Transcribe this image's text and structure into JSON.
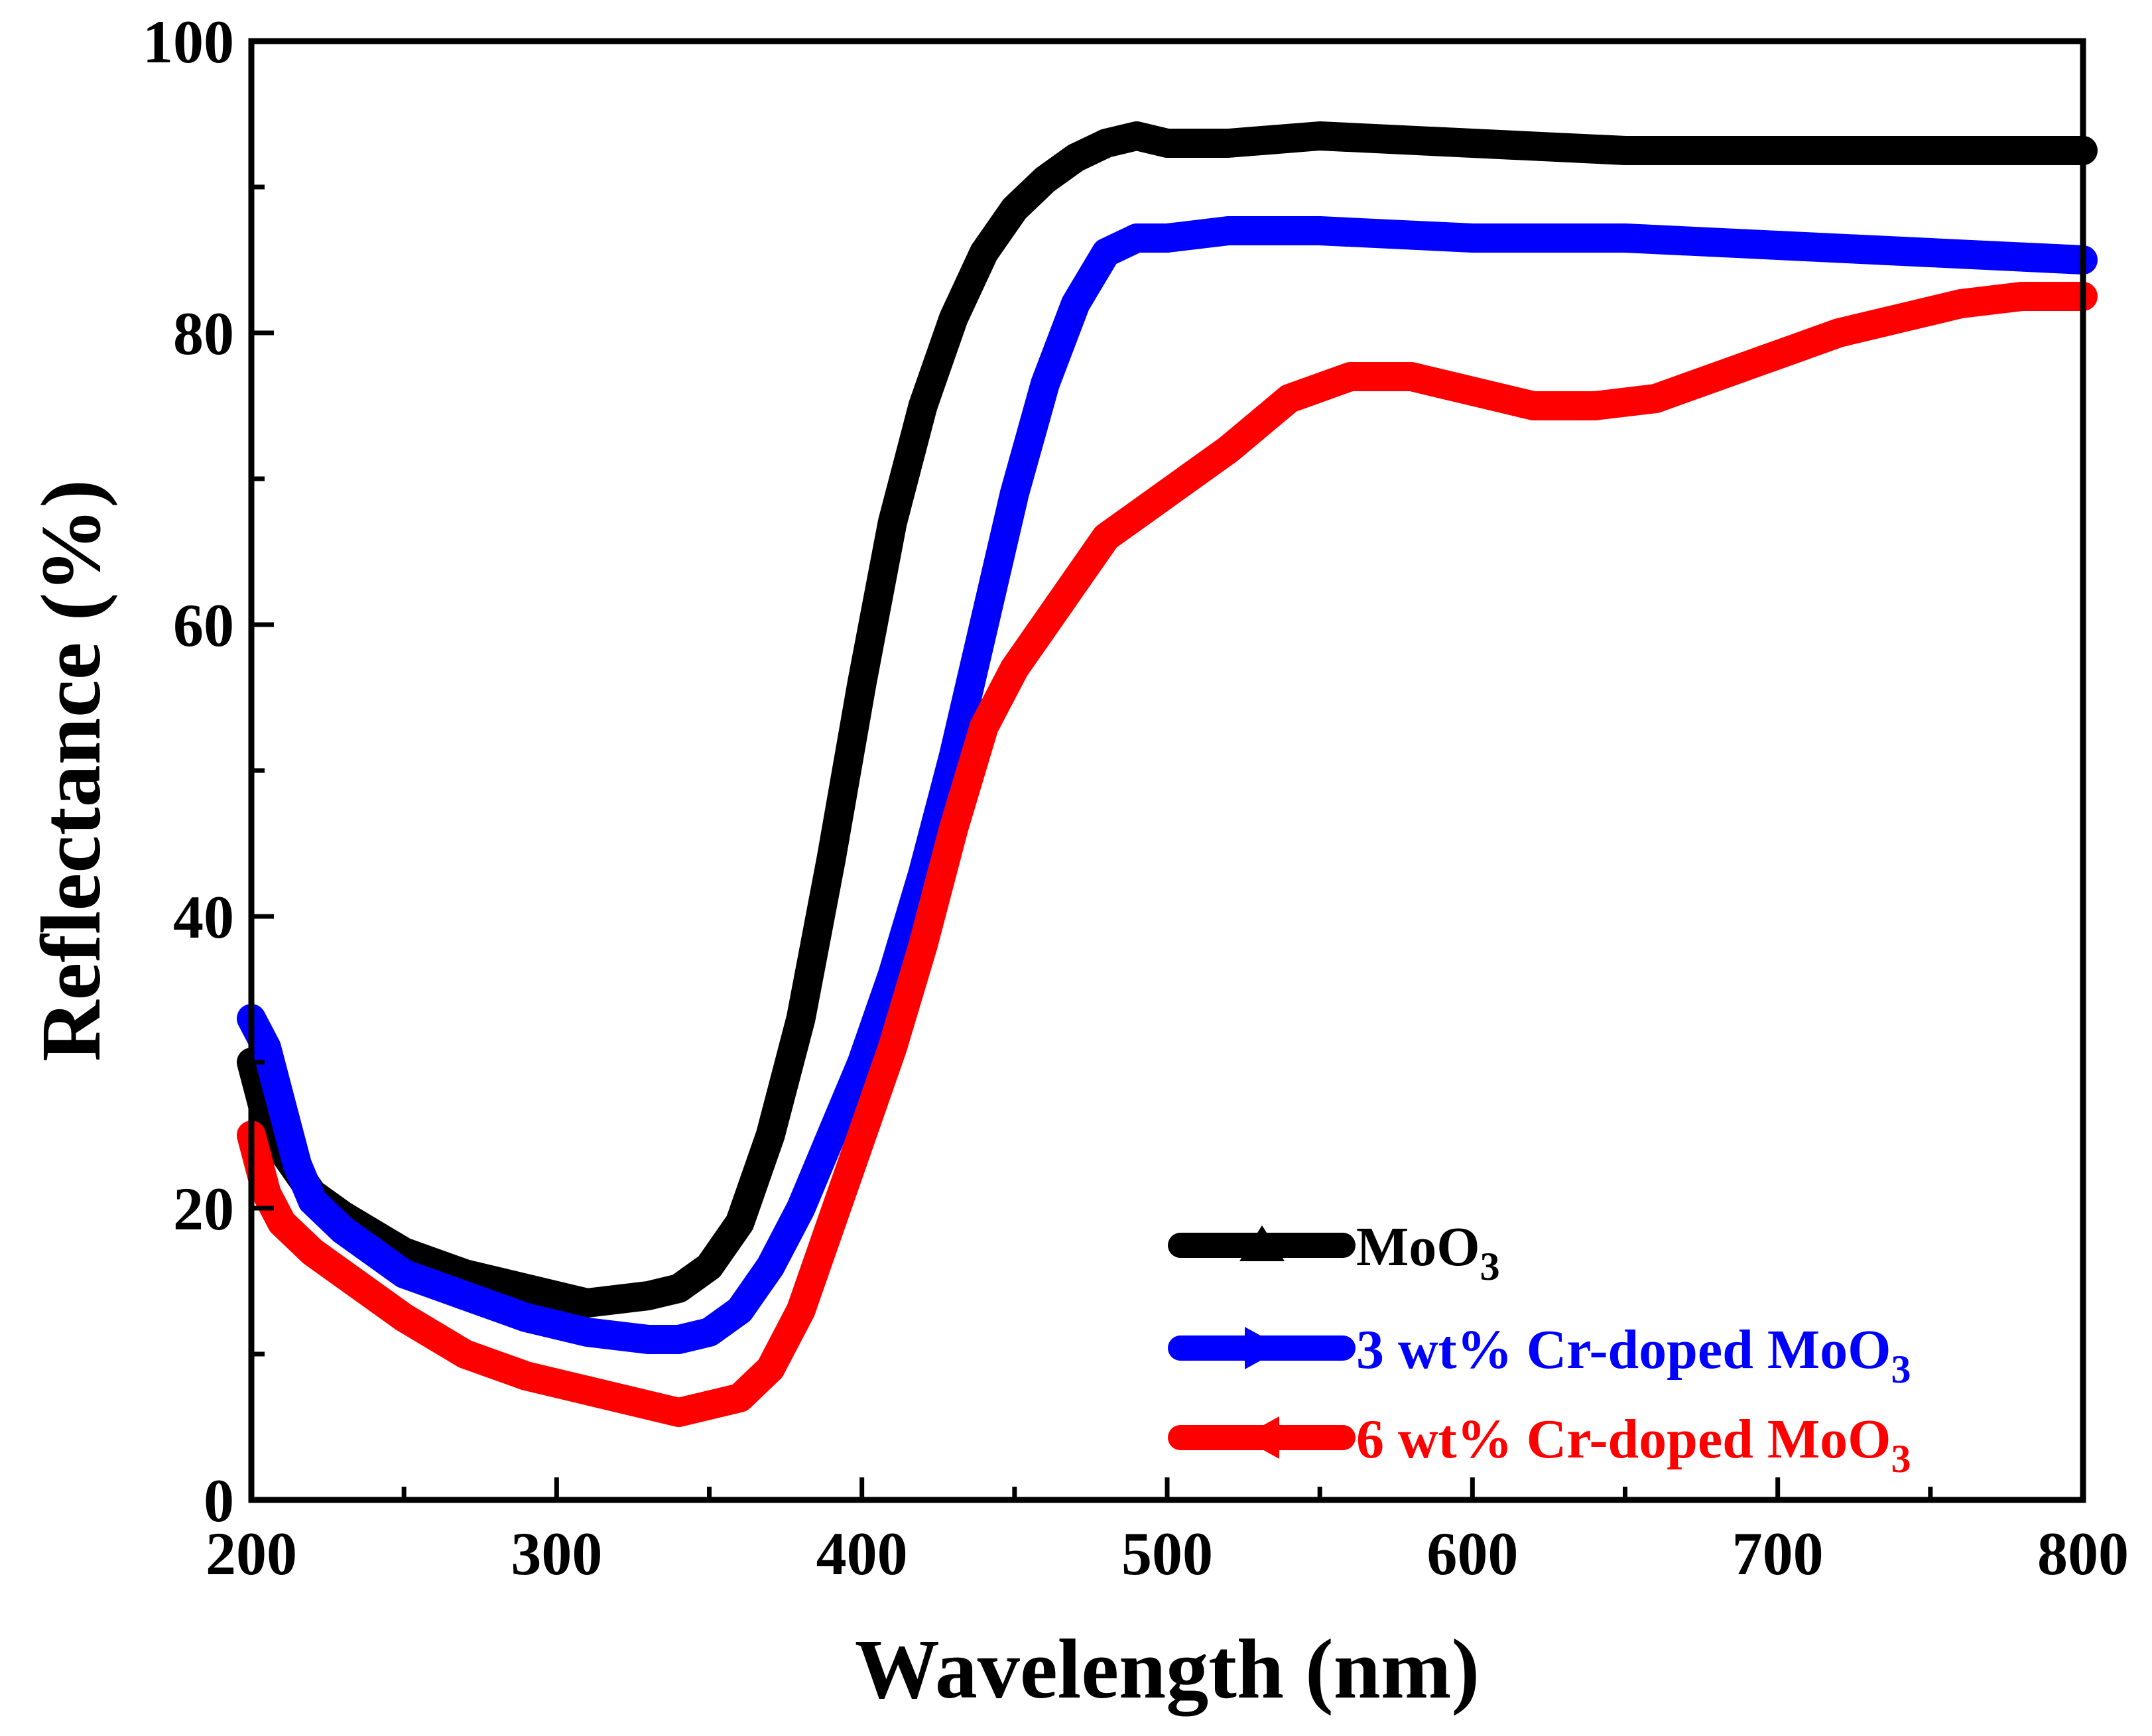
{
  "chart_data": {
    "type": "line",
    "xlabel": "Wavelength (nm)",
    "ylabel": "Reflectance (%)",
    "xlim": [
      200,
      800
    ],
    "ylim": [
      0,
      100
    ],
    "xticks": [
      200,
      300,
      400,
      500,
      600,
      700,
      800
    ],
    "yticks": [
      0,
      20,
      40,
      60,
      80,
      100
    ],
    "grid": false,
    "legend_position": "bottom-right",
    "series": [
      {
        "name_base": "MoO",
        "name_sub": "3",
        "color": "#000000",
        "marker": "triangle-up",
        "x": [
          200,
          205,
          210,
          215,
          220,
          230,
          250,
          270,
          290,
          310,
          330,
          340,
          350,
          360,
          370,
          380,
          390,
          400,
          410,
          420,
          430,
          440,
          450,
          460,
          470,
          480,
          490,
          500,
          520,
          550,
          600,
          650,
          700,
          750,
          800
        ],
        "y": [
          30,
          26,
          24,
          22.5,
          21,
          19.5,
          17,
          15.5,
          14.5,
          13.5,
          14,
          14.5,
          16,
          19,
          25,
          33,
          44,
          56,
          67,
          75,
          81,
          85.5,
          88.5,
          90.5,
          92,
          93,
          93.5,
          93,
          93,
          93.5,
          93,
          92.5,
          92.5,
          92.5,
          92.5
        ]
      },
      {
        "name_base": "3 wt% Cr-doped MoO",
        "name_sub": "3",
        "color": "#0000ff",
        "marker": "triangle-right",
        "x": [
          200,
          205,
          210,
          215,
          220,
          230,
          250,
          270,
          290,
          310,
          330,
          340,
          350,
          360,
          370,
          380,
          390,
          400,
          410,
          420,
          430,
          440,
          450,
          460,
          470,
          480,
          490,
          500,
          520,
          550,
          600,
          650,
          700,
          750,
          800
        ],
        "y": [
          33,
          31,
          27,
          23,
          20.5,
          18.5,
          15.5,
          14,
          12.5,
          11.5,
          11,
          11,
          11.5,
          13,
          16,
          20,
          25,
          30,
          36,
          43,
          51,
          60,
          69,
          76.5,
          82,
          85.5,
          86.5,
          86.5,
          87,
          87,
          86.5,
          86.5,
          86,
          85.5,
          85
        ]
      },
      {
        "name_base": "6 wt% Cr-doped MoO",
        "name_sub": "3",
        "color": "#ff0000",
        "marker": "triangle-left",
        "x": [
          200,
          205,
          210,
          215,
          220,
          230,
          250,
          270,
          290,
          310,
          330,
          340,
          350,
          360,
          370,
          380,
          390,
          400,
          410,
          420,
          430,
          440,
          450,
          460,
          470,
          480,
          490,
          500,
          520,
          540,
          560,
          580,
          600,
          620,
          640,
          660,
          680,
          700,
          720,
          740,
          760,
          780,
          800
        ],
        "y": [
          25,
          21,
          19,
          18,
          17,
          15.5,
          12.5,
          10,
          8.5,
          7.5,
          6.5,
          6,
          6.5,
          7,
          9,
          13,
          19,
          25,
          31,
          38,
          46,
          53,
          57,
          60,
          63,
          66,
          67.5,
          69,
          72,
          75.5,
          77,
          77,
          76,
          75,
          75,
          75.5,
          77,
          78.5,
          80,
          81,
          82,
          82.5,
          82.5
        ]
      }
    ]
  }
}
